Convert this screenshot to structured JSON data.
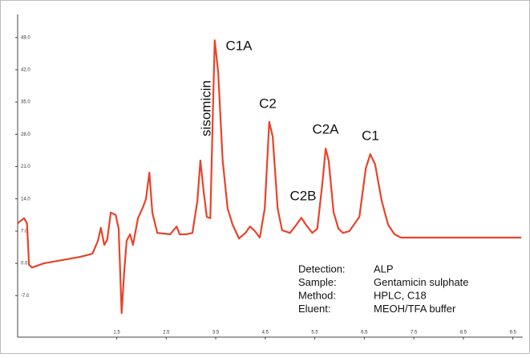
{
  "chart_data": {
    "type": "line",
    "x": [
      -0.5,
      -0.37,
      -0.31,
      -0.27,
      -0.21,
      0.03,
      0.6,
      0.76,
      1.01,
      1.12,
      1.18,
      1.25,
      1.31,
      1.38,
      1.48,
      1.54,
      1.6,
      1.65,
      1.7,
      1.77,
      1.83,
      1.93,
      2.03,
      2.09,
      2.16,
      2.22,
      2.32,
      2.58,
      2.71,
      2.77,
      2.9,
      3.03,
      3.13,
      3.19,
      3.26,
      3.32,
      3.39,
      3.45,
      3.48,
      3.55,
      3.64,
      3.74,
      3.84,
      3.97,
      4.1,
      4.19,
      4.29,
      4.39,
      4.49,
      4.58,
      4.65,
      4.75,
      4.84,
      5.0,
      5.13,
      5.23,
      5.32,
      5.45,
      5.55,
      5.65,
      5.72,
      5.78,
      5.88,
      5.98,
      6.07,
      6.2,
      6.4,
      6.53,
      6.62,
      6.72,
      6.85,
      6.98,
      7.11,
      7.24,
      7.56,
      8.21,
      9.67
    ],
    "series": [
      {
        "color": "#e8432a",
        "values": [
          8.7,
          9.8,
          8.7,
          -0.3,
          -0.9,
          0.0,
          1.1,
          1.4,
          2.1,
          4.9,
          7.7,
          4.0,
          5.2,
          11.0,
          10.5,
          7.5,
          -10.8,
          -2.1,
          4.9,
          6.3,
          4.0,
          9.8,
          12.2,
          13.9,
          19.7,
          11.0,
          6.6,
          6.3,
          8.0,
          6.3,
          6.3,
          6.6,
          13.6,
          22.3,
          15.3,
          10.1,
          9.8,
          36.2,
          48.4,
          41.5,
          22.3,
          11.9,
          8.4,
          5.4,
          6.6,
          8.0,
          7.0,
          5.6,
          11.9,
          30.7,
          27.5,
          11.9,
          7.2,
          6.6,
          8.4,
          9.9,
          8.4,
          6.6,
          7.5,
          17.1,
          24.9,
          22.3,
          11.0,
          7.5,
          6.6,
          7.0,
          10.1,
          20.6,
          23.7,
          21.4,
          13.6,
          8.4,
          6.3,
          5.6,
          5.6,
          5.6,
          5.6
        ]
      }
    ],
    "xlim": [
      -0.5,
      9.7
    ],
    "ylim": [
      -16,
      54
    ],
    "yticks": [
      {
        "value": 49,
        "label": "49.0"
      },
      {
        "value": 42,
        "label": "42.0"
      },
      {
        "value": 35,
        "label": "35.0"
      },
      {
        "value": 28,
        "label": "28.0"
      },
      {
        "value": 21,
        "label": "21.0"
      },
      {
        "value": 14,
        "label": "14.0"
      },
      {
        "value": 7,
        "label": "7.0"
      },
      {
        "value": 0,
        "label": "0.0"
      },
      {
        "value": -7,
        "label": "-7.0"
      }
    ],
    "xticks": [
      1.5,
      2.5,
      3.5,
      4.5,
      5.5,
      6.5,
      7.5,
      8.5,
      9.5
    ],
    "annotations": [
      "sisomicin",
      "C1A",
      "C2",
      "C2B",
      "C2A",
      "C1"
    ],
    "info": [
      {
        "label": "Detection:",
        "value": "ALP"
      },
      {
        "label": "Sample:",
        "value": "Gentamicin sulphate"
      },
      {
        "label": "Method:",
        "value": "HPLC, C18"
      },
      {
        "label": "Eluent:",
        "value": "MEOH/TFA buffer"
      }
    ]
  }
}
